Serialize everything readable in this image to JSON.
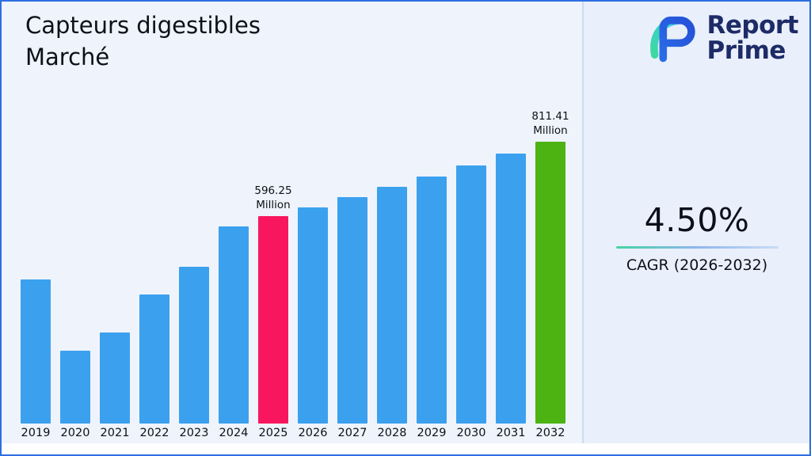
{
  "header": {
    "title_line1": "Capteurs digestibles",
    "title_line2": "Marché"
  },
  "logo": {
    "line1": "Report",
    "line2": "Prime"
  },
  "stats": {
    "cagr_value": "4.50%",
    "cagr_label": "CAGR (2026-2032)"
  },
  "chart_data": {
    "type": "bar",
    "title": "Capteurs digestibles Marché",
    "unit": "Million",
    "categories": [
      "2019",
      "2020",
      "2021",
      "2022",
      "2023",
      "2024",
      "2025",
      "2026",
      "2027",
      "2028",
      "2029",
      "2030",
      "2031",
      "2032"
    ],
    "values": [
      414,
      209,
      262,
      372,
      452,
      567,
      596.25,
      623.08,
      651.12,
      680.42,
      711.04,
      743.03,
      776.47,
      811.41
    ],
    "ylim": [
      0,
      811.41
    ],
    "grid": false,
    "legend": "none",
    "default_bar_color": "#3ba1ee",
    "highlights": [
      {
        "year": "2025",
        "color": "#f8175e",
        "label": "596.25",
        "sublabel": "Million"
      },
      {
        "year": "2032",
        "color": "#4cb313",
        "label": "811.41",
        "sublabel": "Million"
      }
    ],
    "annotations": [
      "596.25 Million above 2025 bar",
      "811.41 Million above 2032 bar"
    ]
  },
  "colors": {
    "background": "#eef3fc",
    "panel_background": "#e9effb",
    "frame_border": "#2d6fe2",
    "bar_blue": "#3ba1ee",
    "bar_pink": "#f8175e",
    "bar_green": "#4cb313",
    "logo_navy": "#1d2b66",
    "accent_teal": "#3ed8a0",
    "accent_blue": "#2b6ce6"
  }
}
